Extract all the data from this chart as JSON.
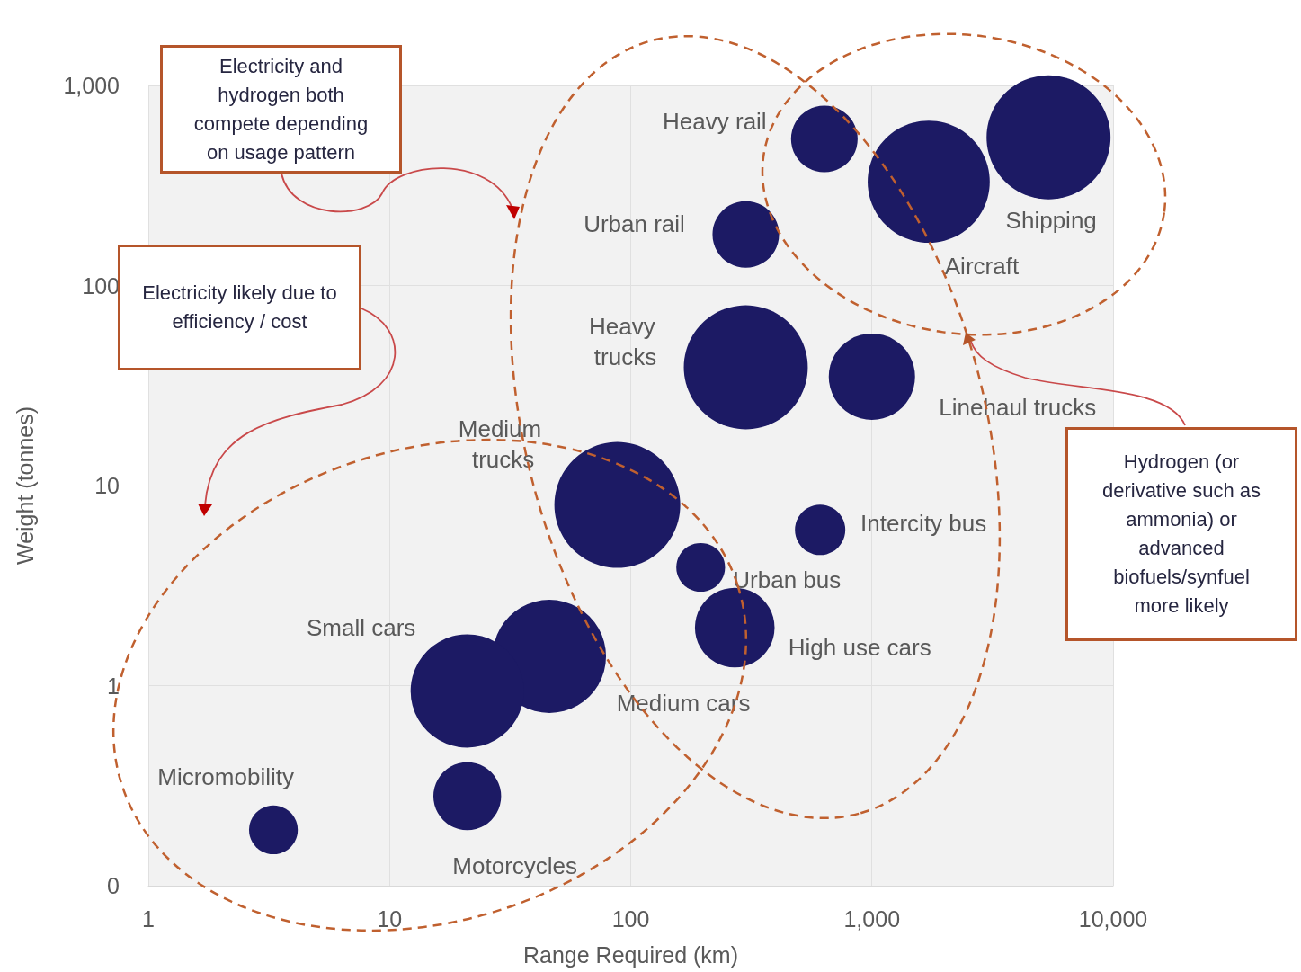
{
  "chart_data": {
    "type": "bubble",
    "xlabel": "Range Required (km)",
    "ylabel": "Weight (tonnes)",
    "log": "xy",
    "grid": true,
    "legend": false,
    "marker": "circle",
    "xlim": [
      1,
      10000
    ],
    "xticks": [
      1,
      10,
      100,
      {
        "value": 1000,
        "label": "1,000"
      },
      {
        "value": 10000,
        "label": "10,000"
      }
    ],
    "ylim": [
      0.1,
      1000
    ],
    "yticks": [
      {
        "value": 0.1,
        "label": "0"
      },
      1,
      10,
      100,
      {
        "value": 1000,
        "label": "1,000"
      }
    ],
    "series": [
      {
        "name": "Heavy rail",
        "color": "#1c1a64",
        "x": [
          635
        ],
        "values": [
          540
        ],
        "sizes": [
          0.28
        ]
      },
      {
        "name": "Aircraft",
        "color": "#1c1a64",
        "x": [
          1720
        ],
        "values": [
          330
        ],
        "sizes": [
          0.94
        ]
      },
      {
        "name": "Shipping",
        "color": "#1c1a64",
        "x": [
          5400
        ],
        "values": [
          550
        ],
        "sizes": [
          0.97
        ]
      },
      {
        "name": "Urban rail",
        "color": "#1c1a64",
        "x": [
          300
        ],
        "values": [
          180
        ],
        "sizes": [
          0.28
        ]
      },
      {
        "name": "Heavy trucks",
        "color": "#1c1a64",
        "x": [
          300
        ],
        "values": [
          39
        ],
        "sizes": [
          0.97
        ]
      },
      {
        "name": "Linehaul trucks",
        "color": "#1c1a64",
        "x": [
          1000
        ],
        "values": [
          35
        ],
        "sizes": [
          0.47
        ]
      },
      {
        "name": "Medium trucks",
        "color": "#1c1a64",
        "x": [
          88
        ],
        "values": [
          8
        ],
        "sizes": [
          1
        ]
      },
      {
        "name": "Intercity bus",
        "color": "#1c1a64",
        "x": [
          610
        ],
        "values": [
          6
        ],
        "sizes": [
          0.16
        ]
      },
      {
        "name": "Urban bus",
        "color": "#1c1a64",
        "x": [
          195
        ],
        "values": [
          3.9
        ],
        "sizes": [
          0.15
        ]
      },
      {
        "name": "High use cars",
        "color": "#1c1a64",
        "x": [
          270
        ],
        "values": [
          1.95
        ],
        "sizes": [
          0.4
        ]
      },
      {
        "name": "Medium cars",
        "color": "#1c1a64",
        "x": [
          46
        ],
        "values": [
          1.4
        ],
        "sizes": [
          0.81
        ]
      },
      {
        "name": "Small cars",
        "color": "#1c1a64",
        "x": [
          21
        ],
        "values": [
          0.94
        ],
        "sizes": [
          0.81
        ]
      },
      {
        "name": "Motorcycles",
        "color": "#1c1a64",
        "x": [
          21
        ],
        "values": [
          0.28
        ],
        "sizes": [
          0.29
        ]
      },
      {
        "name": "Micromobility",
        "color": "#1c1a64",
        "x": [
          3.3
        ],
        "values": [
          0.19
        ],
        "sizes": [
          0.15
        ]
      }
    ],
    "annotations": [
      "Electricity and hydrogen both compete depending on usage pattern",
      "Electricity likely due to efficiency / cost",
      "Hydrogen (or derivative such as ammonia) or advanced biofuels/synfuel more likely"
    ]
  }
}
